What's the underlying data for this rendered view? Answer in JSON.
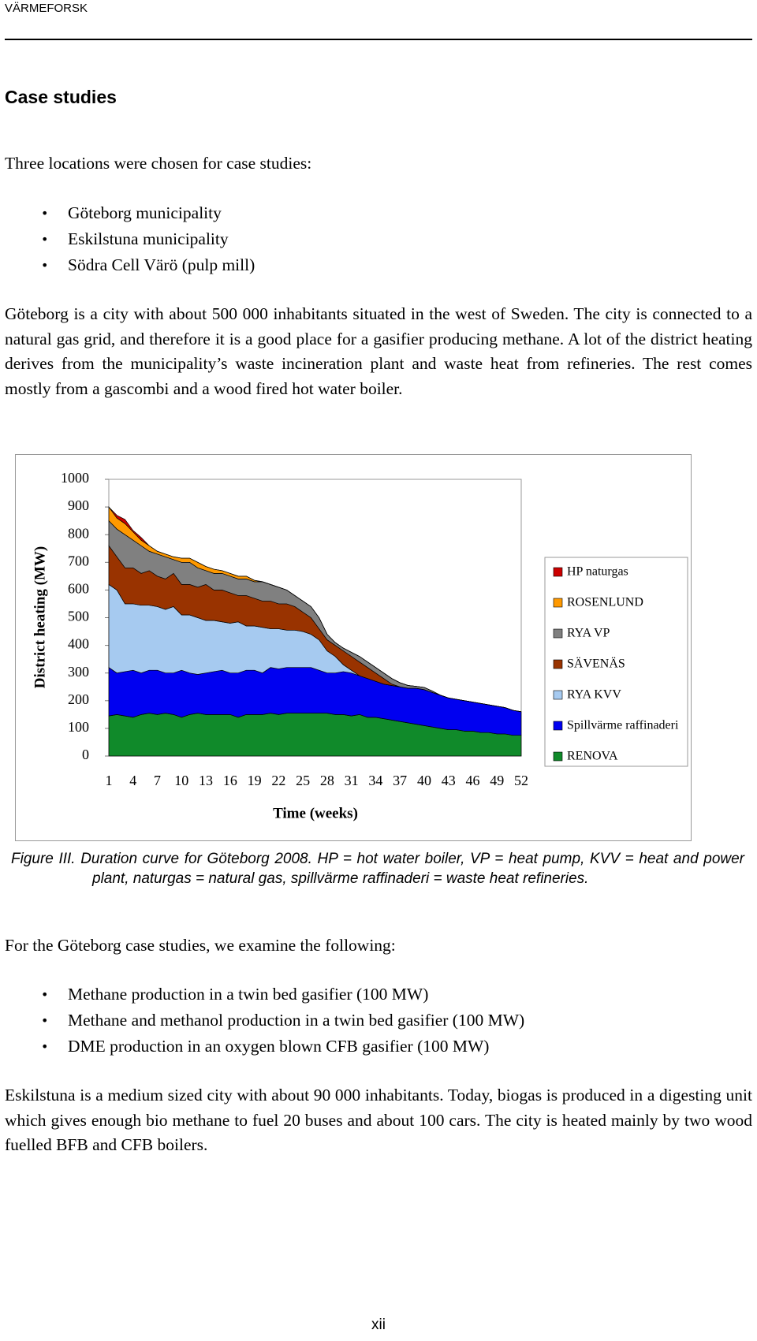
{
  "header": {
    "title": "VÄRMEFORSK"
  },
  "heading": "Case studies",
  "intro": "Three locations were chosen for case studies:",
  "list1": [
    "Göteborg municipality",
    "Eskilstuna municipality",
    "Södra Cell Värö (pulp mill)"
  ],
  "paragraph1": "Göteborg is a city with about 500 000 inhabitants situated in the west of Sweden. The city is connected to a natural gas grid, and therefore it is a good place for a gasifier producing methane. A lot of the district heating derives from the municipality’s waste incineration plant and waste heat from refineries. The rest comes mostly from a gascombi and a wood fired hot water boiler.",
  "chart_data": {
    "type": "stacked_area",
    "x_label": "Time (weeks)",
    "y_label": "District heating (MW)",
    "ylim": [
      0,
      1000
    ],
    "yticks": [
      0,
      100,
      200,
      300,
      400,
      500,
      600,
      700,
      800,
      900,
      1000
    ],
    "grid": false,
    "legend": "right",
    "categories": [
      1,
      null,
      null,
      4,
      null,
      null,
      7,
      null,
      null,
      10,
      null,
      null,
      13,
      null,
      null,
      16,
      null,
      null,
      19,
      null,
      null,
      22,
      null,
      null,
      25,
      null,
      null,
      28,
      null,
      null,
      31,
      null,
      null,
      34,
      null,
      null,
      37,
      null,
      null,
      40,
      null,
      null,
      43,
      null,
      null,
      46,
      null,
      null,
      49,
      null,
      null,
      52
    ],
    "series": [
      {
        "name": "RENOVA",
        "color": "#108a2a",
        "values": [
          145,
          150,
          145,
          140,
          150,
          155,
          150,
          155,
          150,
          140,
          150,
          155,
          150,
          150,
          150,
          150,
          140,
          150,
          150,
          150,
          155,
          150,
          155,
          155,
          155,
          155,
          155,
          155,
          150,
          150,
          145,
          150,
          140,
          140,
          135,
          130,
          125,
          120,
          115,
          110,
          105,
          100,
          95,
          95,
          90,
          90,
          85,
          85,
          80,
          80,
          75,
          75
        ]
      },
      {
        "name": "Spillvärme raffinaderi",
        "color": "#0000f0",
        "values": [
          175,
          150,
          160,
          170,
          150,
          155,
          160,
          145,
          150,
          170,
          150,
          140,
          150,
          155,
          160,
          150,
          160,
          160,
          160,
          150,
          165,
          165,
          165,
          165,
          165,
          165,
          155,
          145,
          150,
          155,
          155,
          140,
          140,
          130,
          125,
          125,
          125,
          125,
          130,
          130,
          125,
          120,
          115,
          110,
          110,
          105,
          105,
          100,
          100,
          95,
          90,
          85
        ]
      },
      {
        "name": "RYA KVV",
        "color": "#a6caf0",
        "values": [
          300,
          300,
          245,
          240,
          245,
          235,
          230,
          230,
          240,
          200,
          210,
          205,
          190,
          185,
          175,
          180,
          185,
          160,
          160,
          165,
          140,
          145,
          135,
          135,
          130,
          120,
          110,
          80,
          60,
          25,
          10,
          0,
          0,
          0,
          0,
          0,
          0,
          0,
          0,
          0,
          0,
          0,
          0,
          0,
          0,
          0,
          0,
          0,
          0,
          0,
          0,
          0
        ]
      },
      {
        "name": "SÄVENÄS",
        "color": "#993300",
        "values": [
          140,
          120,
          130,
          130,
          115,
          125,
          110,
          110,
          120,
          110,
          110,
          110,
          130,
          110,
          115,
          110,
          95,
          110,
          100,
          95,
          100,
          90,
          95,
          85,
          70,
          60,
          40,
          40,
          40,
          50,
          50,
          50,
          40,
          30,
          20,
          5,
          0,
          0,
          0,
          0,
          0,
          0,
          0,
          0,
          0,
          0,
          0,
          0,
          0,
          0,
          0,
          0
        ]
      },
      {
        "name": "RYA VP",
        "color": "#808080",
        "values": [
          90,
          100,
          120,
          100,
          100,
          70,
          80,
          80,
          50,
          80,
          80,
          70,
          50,
          60,
          60,
          60,
          60,
          60,
          60,
          70,
          60,
          60,
          50,
          40,
          40,
          40,
          40,
          20,
          10,
          10,
          15,
          20,
          20,
          20,
          20,
          20,
          15,
          10,
          7,
          8,
          5,
          0,
          0,
          0,
          0,
          0,
          0,
          0,
          0,
          0,
          0,
          0
        ]
      },
      {
        "name": "ROSENLUND",
        "color": "#ff9900",
        "values": [
          50,
          40,
          40,
          30,
          20,
          20,
          10,
          10,
          10,
          15,
          15,
          20,
          15,
          15,
          10,
          10,
          10,
          10,
          5,
          0,
          0,
          0,
          0,
          0,
          0,
          0,
          0,
          0,
          0,
          0,
          0,
          0,
          0,
          0,
          0,
          0,
          0,
          0,
          0,
          0,
          0,
          0,
          0,
          0,
          0,
          0,
          0,
          0,
          0,
          0,
          0,
          0
        ]
      },
      {
        "name": "HP naturgas",
        "color": "#cc0000",
        "values": [
          0,
          10,
          15,
          5,
          10,
          0,
          0,
          0,
          0,
          0,
          0,
          0,
          0,
          0,
          0,
          0,
          0,
          0,
          0,
          0,
          0,
          0,
          0,
          0,
          0,
          0,
          0,
          0,
          0,
          0,
          0,
          0,
          0,
          0,
          0,
          0,
          0,
          0,
          0,
          0,
          0,
          0,
          0,
          0,
          0,
          0,
          0,
          0,
          0,
          0,
          0,
          0
        ]
      }
    ]
  },
  "caption": "Figure III. Duration curve for Göteborg 2008. HP = hot water boiler, VP = heat pump, KVV = heat and power plant, naturgas = natural gas, spillvärme raffinaderi = waste heat refineries.",
  "intro2": "For the Göteborg case studies, we examine the following:",
  "list2": [
    "Methane production in a twin bed gasifier (100 MW)",
    "Methane and methanol production in a twin bed gasifier (100 MW)",
    "DME production in an oxygen blown CFB gasifier (100 MW)"
  ],
  "paragraph2": "Eskilstuna is a medium sized city with about 90 000 inhabitants. Today, biogas is produced in a digesting unit which gives enough bio methane to fuel 20 buses and about 100 cars. The city is heated mainly by two wood fuelled BFB and CFB boilers.",
  "page_number": "xii"
}
